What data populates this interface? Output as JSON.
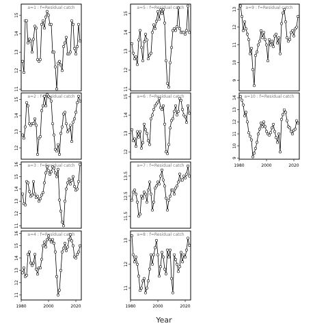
{
  "xlabel": "Year",
  "chart_data": [
    {
      "type": "line",
      "label": "a=1 : f=Residual catch",
      "xlim": [
        1980,
        2024
      ],
      "ylim": [
        10.9,
        15.6
      ],
      "yticks": [
        11,
        12,
        13,
        14,
        15
      ],
      "xticks": [],
      "x": [
        1981,
        1982,
        1983,
        1984,
        1985,
        1986,
        1987,
        1988,
        1989,
        1990,
        1991,
        1992,
        1993,
        1994,
        1995,
        1996,
        1997,
        1998,
        1999,
        2000,
        2001,
        2002,
        2003,
        2004,
        2005,
        2006,
        2007,
        2008,
        2009,
        2010,
        2011,
        2012,
        2013,
        2014,
        2015,
        2016,
        2017,
        2018,
        2019,
        2020,
        2021,
        2022,
        2023
      ],
      "y": [
        12.5,
        11.9,
        14.7,
        14.7,
        13.5,
        13.7,
        13.6,
        13.0,
        13.7,
        14.4,
        14.3,
        12.6,
        12.5,
        12.6,
        14.5,
        14.7,
        14.3,
        14.9,
        15.2,
        15.0,
        14.5,
        14.5,
        13.0,
        13.0,
        12.2,
        11.0,
        12.4,
        12.5,
        12.3,
        12.0,
        13.3,
        13.5,
        13.8,
        12.9,
        12.9,
        13.0,
        14.7,
        14.5,
        13.2,
        12.9,
        13.3,
        14.5,
        13.6
      ]
    },
    {
      "type": "line",
      "label": "a=2 : f=Residual catch",
      "xlim": [
        1980,
        2024
      ],
      "ylim": [
        11.3,
        15.4
      ],
      "yticks": [
        12,
        13,
        14,
        15
      ],
      "xticks": [],
      "x": [
        1981,
        1982,
        1983,
        1984,
        1985,
        1986,
        1987,
        1988,
        1989,
        1990,
        1991,
        1992,
        1993,
        1994,
        1995,
        1996,
        1997,
        1998,
        1999,
        2000,
        2001,
        2002,
        2003,
        2004,
        2005,
        2006,
        2007,
        2008,
        2009,
        2010,
        2011,
        2012,
        2013,
        2014,
        2015,
        2016,
        2017,
        2018,
        2019,
        2020,
        2021,
        2022,
        2023
      ],
      "y": [
        12.8,
        12.6,
        13.3,
        14.8,
        14.6,
        13.5,
        13.4,
        13.5,
        13.5,
        13.8,
        13.4,
        11.6,
        12.6,
        12.7,
        14.3,
        14.6,
        15.2,
        14.6,
        15.3,
        15.2,
        15.1,
        14.9,
        13.5,
        12.8,
        11.9,
        11.8,
        12.2,
        11.6,
        12.9,
        13.3,
        14.1,
        14.2,
        13.5,
        13.0,
        13.1,
        13.4,
        12.4,
        13.6,
        13.8,
        14.2,
        14.8,
        15.2,
        14.9
      ]
    },
    {
      "type": "line",
      "label": "a=3 : f=Residual catch",
      "xlim": [
        1980,
        2024
      ],
      "ylim": [
        10.8,
        16.2
      ],
      "yticks": [
        11,
        12,
        13,
        14,
        15,
        16
      ],
      "xticks": [],
      "x": [
        1981,
        1982,
        1983,
        1984,
        1985,
        1986,
        1987,
        1988,
        1989,
        1990,
        1991,
        1992,
        1993,
        1994,
        1995,
        1996,
        1997,
        1998,
        1999,
        2000,
        2001,
        2002,
        2003,
        2004,
        2005,
        2006,
        2007,
        2008,
        2009,
        2010,
        2011,
        2012,
        2013,
        2014,
        2015,
        2016,
        2017,
        2018,
        2019,
        2020,
        2021,
        2022,
        2023
      ],
      "y": [
        13.6,
        12.8,
        12.7,
        14.6,
        14.5,
        13.8,
        13.4,
        13.5,
        14.6,
        13.6,
        13.3,
        13.4,
        13.0,
        13.2,
        13.5,
        13.7,
        14.5,
        15.3,
        15.8,
        15.5,
        15.2,
        15.4,
        15.8,
        15.7,
        15.3,
        15.0,
        15.6,
        13.1,
        12.2,
        11.3,
        11.0,
        13.0,
        14.0,
        14.5,
        14.8,
        14.4,
        14.7,
        15.0,
        14.2,
        13.9,
        14.0,
        14.6,
        16.0
      ]
    },
    {
      "type": "line",
      "label": "a=4 : f=Residual catch",
      "xlim": [
        1980,
        2024
      ],
      "ylim": [
        10.6,
        16.2
      ],
      "yticks": [
        11,
        12,
        13,
        14,
        15,
        16
      ],
      "xticks": [
        1980,
        2000,
        2020
      ],
      "x": [
        1981,
        1982,
        1983,
        1984,
        1985,
        1986,
        1987,
        1988,
        1989,
        1990,
        1991,
        1992,
        1993,
        1994,
        1995,
        1996,
        1997,
        1998,
        1999,
        2000,
        2001,
        2002,
        2003,
        2004,
        2005,
        2006,
        2007,
        2008,
        2009,
        2010,
        2011,
        2012,
        2013,
        2014,
        2015,
        2016,
        2017,
        2018,
        2019,
        2020,
        2021,
        2022,
        2023
      ],
      "y": [
        12.8,
        13.2,
        12.5,
        12.6,
        14.3,
        14.5,
        13.6,
        13.4,
        13.6,
        14.3,
        13.1,
        12.7,
        13.2,
        13.2,
        13.9,
        15.0,
        15.3,
        14.9,
        15.5,
        15.8,
        15.5,
        15.3,
        15.5,
        15.2,
        14.5,
        12.5,
        11.0,
        11.4,
        13.0,
        14.5,
        14.8,
        15.2,
        14.6,
        14.9,
        15.5,
        15.9,
        15.4,
        15.0,
        14.1,
        14.0,
        14.3,
        14.5,
        15.0
      ]
    },
    {
      "type": "line",
      "label": "a=5 : f=Residual catch",
      "xlim": [
        1980,
        2024
      ],
      "ylim": [
        10.9,
        15.5
      ],
      "yticks": [
        11,
        12,
        13,
        14,
        15
      ],
      "xticks": [],
      "x": [
        1981,
        1982,
        1983,
        1984,
        1985,
        1986,
        1987,
        1988,
        1989,
        1990,
        1991,
        1992,
        1993,
        1994,
        1995,
        1996,
        1997,
        1998,
        1999,
        2000,
        2001,
        2002,
        2003,
        2004,
        2005,
        2006,
        2007,
        2008,
        2009,
        2010,
        2011,
        2012,
        2013,
        2014,
        2015,
        2016,
        2017,
        2018,
        2019,
        2020,
        2021,
        2022,
        2023
      ],
      "y": [
        13.4,
        12.9,
        12.6,
        12.7,
        12.3,
        13.6,
        14.1,
        13.2,
        12.5,
        13.5,
        13.9,
        13.6,
        12.6,
        12.8,
        12.9,
        14.0,
        14.4,
        14.2,
        14.6,
        15.1,
        14.7,
        15.2,
        15.0,
        15.2,
        14.5,
        12.5,
        11.3,
        11.1,
        12.4,
        13.2,
        14.1,
        14.2,
        14.1,
        14.3,
        15.3,
        14.2,
        14.0,
        14.0,
        14.0,
        13.9,
        14.1,
        15.4,
        14.0
      ]
    },
    {
      "type": "line",
      "label": "a=6 : f=Residual catch",
      "xlim": [
        1980,
        2024
      ],
      "ylim": [
        11.6,
        15.2
      ],
      "yticks": [
        12.0,
        13.0,
        14.0,
        15.0
      ],
      "xticks": [],
      "x": [
        1981,
        1982,
        1983,
        1984,
        1985,
        1986,
        1987,
        1988,
        1989,
        1990,
        1991,
        1992,
        1993,
        1994,
        1995,
        1996,
        1997,
        1998,
        1999,
        2000,
        2001,
        2002,
        2003,
        2004,
        2005,
        2006,
        2007,
        2008,
        2009,
        2010,
        2011,
        2012,
        2013,
        2014,
        2015,
        2016,
        2017,
        2018,
        2019,
        2020,
        2021,
        2022,
        2023
      ],
      "y": [
        13.2,
        12.6,
        12.7,
        12.3,
        13.1,
        12.8,
        13.1,
        12.2,
        12.5,
        13.5,
        13.2,
        13.0,
        12.6,
        12.4,
        13.8,
        14.0,
        14.3,
        14.5,
        14.6,
        14.7,
        14.9,
        14.4,
        14.3,
        14.5,
        13.5,
        12.0,
        11.9,
        12.4,
        13.3,
        13.7,
        13.8,
        14.2,
        14.5,
        14.0,
        14.2,
        14.9,
        14.8,
        14.3,
        14.0,
        13.9,
        13.6,
        14.5,
        14.1
      ]
    },
    {
      "type": "line",
      "label": "a=7 : f=Residual catch",
      "xlim": [
        1980,
        2024
      ],
      "ylim": [
        10.9,
        14.2
      ],
      "yticks": [
        11.5,
        12.5,
        13.5
      ],
      "xticks": [],
      "x": [
        1981,
        1982,
        1983,
        1984,
        1985,
        1986,
        1987,
        1988,
        1989,
        1990,
        1991,
        1992,
        1993,
        1994,
        1995,
        1996,
        1997,
        1998,
        1999,
        2000,
        2001,
        2002,
        2003,
        2004,
        2005,
        2006,
        2007,
        2008,
        2009,
        2010,
        2011,
        2012,
        2013,
        2014,
        2015,
        2016,
        2017,
        2018,
        2019,
        2020,
        2021,
        2022,
        2023
      ],
      "y": [
        12.3,
        12.7,
        12.8,
        12.6,
        12.2,
        11.5,
        11.6,
        12.5,
        12.4,
        12.7,
        12.6,
        12.2,
        12.8,
        13.2,
        12.6,
        11.8,
        12.2,
        12.9,
        13.0,
        13.2,
        13.1,
        13.5,
        13.8,
        13.3,
        13.0,
        12.4,
        11.8,
        12.3,
        12.5,
        12.8,
        12.8,
        12.6,
        12.9,
        13.0,
        13.2,
        13.6,
        13.3,
        13.3,
        13.5,
        13.4,
        13.6,
        14.0,
        13.5
      ]
    },
    {
      "type": "line",
      "label": "a=8 : f=Residual catch",
      "xlim": [
        1980,
        2024
      ],
      "ylim": [
        10.5,
        13.4
      ],
      "yticks": [
        11.0,
        12.0,
        13.0
      ],
      "xticks": [
        1980,
        2000,
        2020
      ],
      "x": [
        1981,
        1982,
        1983,
        1984,
        1985,
        1986,
        1987,
        1988,
        1989,
        1990,
        1991,
        1992,
        1993,
        1994,
        1995,
        1996,
        1997,
        1998,
        1999,
        2000,
        2001,
        2002,
        2003,
        2004,
        2005,
        2006,
        2007,
        2008,
        2009,
        2010,
        2011,
        2012,
        2013,
        2014,
        2015,
        2016,
        2017,
        2018,
        2019,
        2020,
        2021,
        2022,
        2023
      ],
      "y": [
        13.2,
        12.4,
        12.1,
        12.3,
        12.0,
        11.5,
        10.9,
        11.0,
        11.3,
        11.4,
        10.8,
        11.0,
        11.3,
        11.8,
        12.4,
        12.0,
        12.4,
        12.7,
        13.0,
        12.4,
        11.5,
        11.9,
        12.5,
        12.3,
        11.8,
        11.6,
        12.6,
        12.3,
        12.6,
        11.4,
        10.8,
        12.4,
        12.2,
        12.0,
        11.7,
        11.9,
        12.5,
        12.1,
        12.4,
        12.3,
        12.6,
        13.1,
        12.8
      ]
    },
    {
      "type": "line",
      "label": "a=9 : f=Residual catch",
      "xlim": [
        1980,
        2024
      ],
      "ylim": [
        8.4,
        13.3
      ],
      "yticks": [
        9,
        10,
        11,
        12,
        13
      ],
      "xticks": [],
      "x": [
        1981,
        1982,
        1983,
        1984,
        1985,
        1986,
        1987,
        1988,
        1989,
        1990,
        1991,
        1992,
        1993,
        1994,
        1995,
        1996,
        1997,
        1998,
        1999,
        2000,
        2001,
        2002,
        2003,
        2004,
        2005,
        2006,
        2007,
        2008,
        2009,
        2010,
        2011,
        2012,
        2013,
        2014,
        2015,
        2016,
        2017,
        2018,
        2019,
        2020,
        2021,
        2022,
        2023
      ],
      "y": [
        13.2,
        12.6,
        11.8,
        12.3,
        11.9,
        11.6,
        11.3,
        10.5,
        10.8,
        9.6,
        8.7,
        10.4,
        10.6,
        11.0,
        11.2,
        11.8,
        11.4,
        11.7,
        11.3,
        11.0,
        10.1,
        11.3,
        11.0,
        11.2,
        10.9,
        11.5,
        11.6,
        11.1,
        11.4,
        10.5,
        12.2,
        12.8,
        13.0,
        12.3,
        11.4,
        11.2,
        11.3,
        11.7,
        11.8,
        11.5,
        11.9,
        12.0,
        12.6
      ]
    },
    {
      "type": "line",
      "label": "a=10 : f=Residual catch",
      "xlim": [
        1980,
        2024
      ],
      "ylim": [
        8.9,
        14.4
      ],
      "yticks": [
        9,
        10,
        11,
        12,
        13,
        14
      ],
      "xticks": [
        1980,
        2000,
        2020
      ],
      "x": [
        1981,
        1982,
        1983,
        1984,
        1985,
        1986,
        1987,
        1988,
        1989,
        1990,
        1991,
        1992,
        1993,
        1994,
        1995,
        1996,
        1997,
        1998,
        1999,
        2000,
        2001,
        2002,
        2003,
        2004,
        2005,
        2006,
        2007,
        2008,
        2009,
        2010,
        2011,
        2012,
        2013,
        2014,
        2015,
        2016,
        2017,
        2018,
        2019,
        2020,
        2021,
        2022,
        2023
      ],
      "y": [
        14.1,
        13.8,
        13.4,
        12.5,
        12.8,
        12.0,
        11.1,
        10.8,
        10.5,
        9.1,
        9.4,
        9.8,
        10.3,
        11.0,
        11.4,
        11.9,
        11.6,
        12.0,
        11.6,
        11.2,
        11.0,
        10.9,
        11.1,
        11.5,
        11.8,
        11.2,
        10.7,
        10.3,
        11.0,
        9.5,
        12.2,
        12.6,
        13.0,
        12.8,
        12.1,
        11.6,
        11.5,
        11.2,
        11.0,
        11.3,
        11.4,
        12.1,
        11.9
      ]
    }
  ]
}
